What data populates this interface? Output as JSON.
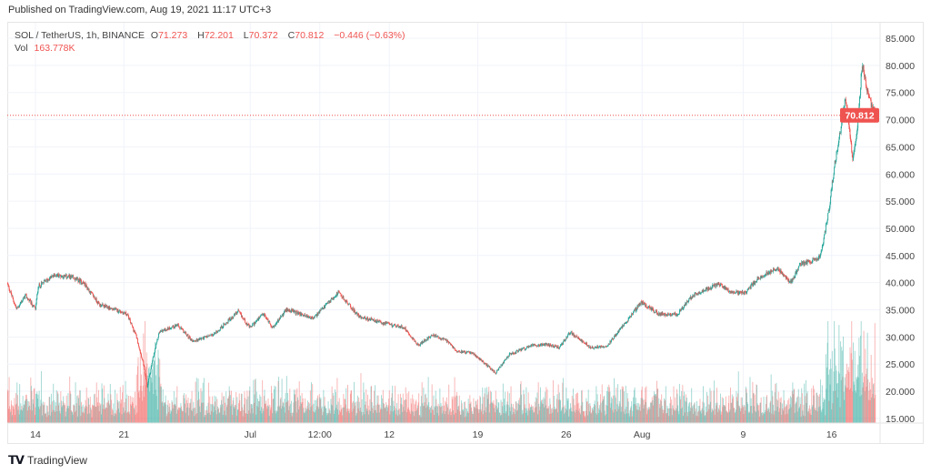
{
  "header": {
    "published": "Published on TradingView.com, Aug 19, 2021 11:17 UTC+3"
  },
  "legend": {
    "symbol": "SOL / TetherUS, 1h, BINANCE",
    "open_label": "O",
    "open": "71.273",
    "high_label": "H",
    "high": "72.201",
    "low_label": "L",
    "low": "70.372",
    "close_label": "C",
    "close": "70.812",
    "change": "−0.446 (−0.63%)",
    "vol_label": "Vol",
    "vol": "163.778K"
  },
  "last_price_label": "70.812",
  "footer": {
    "brand": "TradingView",
    "logo_text": "TV"
  },
  "colors": {
    "up": "#26a69a",
    "down": "#ef5350",
    "grid": "#f0f3fa",
    "text": "#444444"
  },
  "chart_data": {
    "type": "candlestick",
    "symbol": "SOL/USDT",
    "interval": "1h",
    "ylim": [
      15,
      85
    ],
    "y_ticks": [
      "85.000",
      "80.000",
      "75.000",
      "70.000",
      "65.000",
      "60.000",
      "55.000",
      "50.000",
      "45.000",
      "40.000",
      "35.000",
      "30.000",
      "25.000",
      "20.000",
      "15.000"
    ],
    "x_ticks": [
      {
        "label": "14",
        "date": "2021-06-14T00:00"
      },
      {
        "label": "21",
        "date": "2021-06-21T00:00"
      },
      {
        "label": "Jul",
        "date": "2021-07-01T00:00"
      },
      {
        "label": "12:00",
        "date": "2021-07-06T12:00"
      },
      {
        "label": "12",
        "date": "2021-07-12T00:00"
      },
      {
        "label": "19",
        "date": "2021-07-19T00:00"
      },
      {
        "label": "26",
        "date": "2021-07-26T00:00"
      },
      {
        "label": "Aug",
        "date": "2021-08-01T00:00"
      },
      {
        "label": "9",
        "date": "2021-08-09T00:00"
      },
      {
        "label": "16",
        "date": "2021-08-16T00:00"
      }
    ],
    "last_price": 70.812,
    "price_path": [
      [
        "2021-06-11T18:00",
        40.0
      ],
      [
        "2021-06-12T12:00",
        35.1
      ],
      [
        "2021-06-13T05:00",
        37.6
      ],
      [
        "2021-06-14T00:00",
        35.1
      ],
      [
        "2021-06-14T05:00",
        39.3
      ],
      [
        "2021-06-15T12:00",
        41.4
      ],
      [
        "2021-06-16T19:00",
        41.0
      ],
      [
        "2021-06-17T19:00",
        40.0
      ],
      [
        "2021-06-19T02:00",
        35.9
      ],
      [
        "2021-06-20T17:00",
        34.7
      ],
      [
        "2021-06-21T06:00",
        34.2
      ],
      [
        "2021-06-22T00:00",
        30.0
      ],
      [
        "2021-06-22T13:00",
        25.0
      ],
      [
        "2021-06-22T20:00",
        20.8
      ],
      [
        "2021-06-23T07:00",
        26.0
      ],
      [
        "2021-06-23T19:00",
        30.9
      ],
      [
        "2021-06-25T05:00",
        32.2
      ],
      [
        "2021-06-26T11:00",
        29.2
      ],
      [
        "2021-06-28T02:00",
        30.4
      ],
      [
        "2021-06-30T01:00",
        34.7
      ],
      [
        "2021-06-30T23:00",
        31.7
      ],
      [
        "2021-07-02T01:00",
        34.2
      ],
      [
        "2021-07-02T19:00",
        31.7
      ],
      [
        "2021-07-03T21:00",
        35.1
      ],
      [
        "2021-07-06T00:00",
        33.4
      ],
      [
        "2021-07-07T23:00",
        38.2
      ],
      [
        "2021-07-09T14:00",
        33.8
      ],
      [
        "2021-07-11T10:00",
        32.6
      ],
      [
        "2021-07-13T05:00",
        31.7
      ],
      [
        "2021-07-14T07:00",
        28.4
      ],
      [
        "2021-07-15T09:00",
        30.4
      ],
      [
        "2021-07-16T14:00",
        29.2
      ],
      [
        "2021-07-17T07:00",
        27.5
      ],
      [
        "2021-07-18T14:00",
        27.0
      ],
      [
        "2021-07-20T10:00",
        23.4
      ],
      [
        "2021-07-21T12:00",
        26.7
      ],
      [
        "2021-07-23T07:00",
        28.4
      ],
      [
        "2021-07-24T09:00",
        28.7
      ],
      [
        "2021-07-25T11:00",
        28.0
      ],
      [
        "2021-07-26T07:00",
        30.9
      ],
      [
        "2021-07-27T23:00",
        28.0
      ],
      [
        "2021-07-29T06:00",
        28.4
      ],
      [
        "2021-07-30T23:00",
        33.4
      ],
      [
        "2021-07-31T22:00",
        36.4
      ],
      [
        "2021-08-02T08:00",
        34.2
      ],
      [
        "2021-08-03T19:00",
        34.2
      ],
      [
        "2021-08-05T00:00",
        37.6
      ],
      [
        "2021-08-07T01:00",
        39.8
      ],
      [
        "2021-08-08T02:00",
        38.2
      ],
      [
        "2021-08-09T05:00",
        38.2
      ],
      [
        "2021-08-10T06:00",
        41.0
      ],
      [
        "2021-08-11T17:00",
        42.6
      ],
      [
        "2021-08-12T19:00",
        40.0
      ],
      [
        "2021-08-13T12:00",
        43.4
      ],
      [
        "2021-08-14T23:00",
        44.3
      ],
      [
        "2021-08-15T07:00",
        46.8
      ],
      [
        "2021-08-15T19:00",
        53.5
      ],
      [
        "2021-08-16T06:00",
        61.9
      ],
      [
        "2021-08-16T18:00",
        68.6
      ],
      [
        "2021-08-17T02:00",
        74.4
      ],
      [
        "2021-08-17T16:00",
        62.7
      ],
      [
        "2021-08-18T01:00",
        68.6
      ],
      [
        "2021-08-18T10:00",
        80.3
      ],
      [
        "2021-08-18T22:00",
        74.4
      ],
      [
        "2021-08-19T11:00",
        70.812
      ]
    ]
  }
}
